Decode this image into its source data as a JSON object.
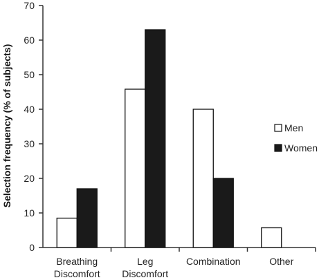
{
  "chart_data": {
    "type": "bar",
    "title": "",
    "xlabel": "",
    "ylabel": "Selection frequency (% of subjects)",
    "ylim": [
      0,
      70
    ],
    "yticks": [
      0,
      10,
      20,
      30,
      40,
      50,
      60,
      70
    ],
    "categories": [
      [
        "Breathing",
        "Discomfort"
      ],
      [
        "Leg",
        "Discomfort"
      ],
      [
        "Combination"
      ],
      [
        "Other"
      ]
    ],
    "series": [
      {
        "name": "Men",
        "color": "#ffffff",
        "values": [
          8.5,
          45.8,
          40,
          5.7
        ]
      },
      {
        "name": "Women",
        "color": "#1a1a1a",
        "values": [
          17,
          63,
          20,
          0
        ]
      }
    ],
    "grid": false,
    "legend_position": "right"
  }
}
